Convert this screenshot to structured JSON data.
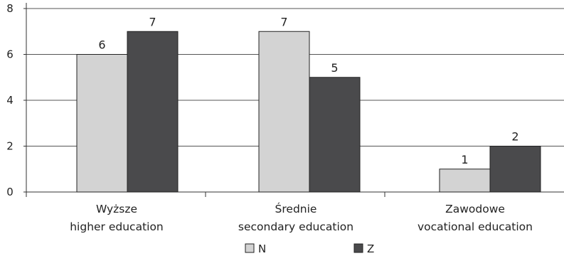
{
  "chart_data": {
    "type": "bar",
    "categories": [
      [
        "Wyższe",
        "higher education"
      ],
      [
        "Średnie",
        "secondary education"
      ],
      [
        "Zawodowe",
        "vocational education"
      ]
    ],
    "series": [
      {
        "name": "N",
        "values": [
          6,
          7,
          1
        ],
        "color": "#d3d3d3"
      },
      {
        "name": "Z",
        "values": [
          7,
          5,
          2
        ],
        "color": "#4a4a4c"
      }
    ],
    "ylim": [
      0,
      8
    ],
    "yticks": [
      0,
      2,
      4,
      6,
      8
    ],
    "grid": true,
    "legend": "bottom-center"
  }
}
